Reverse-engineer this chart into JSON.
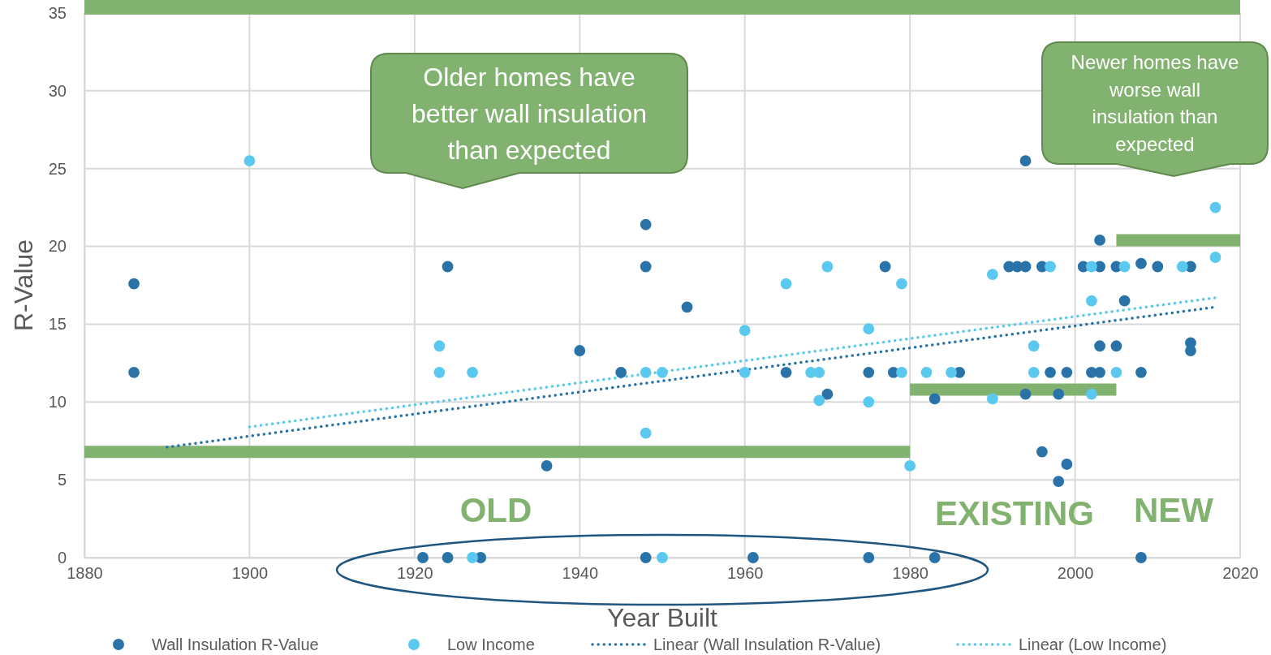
{
  "chart_data": {
    "type": "scatter",
    "xlabel": "Year Built",
    "ylabel": "R-Value",
    "xlim": [
      1880,
      2020
    ],
    "ylim": [
      0,
      35
    ],
    "xticks": [
      1880,
      1900,
      1920,
      1940,
      1960,
      1980,
      2000,
      2020
    ],
    "yticks": [
      0,
      5,
      10,
      15,
      20,
      25,
      30,
      35
    ],
    "grid": true,
    "legend": "bottom",
    "annotations": [
      "Older homes have better wall insulation than expected",
      "Newer homes have worse wall insulation than expected",
      "OLD",
      "EXISTING",
      "NEW"
    ],
    "series": [
      {
        "type": "line",
        "color": "#82b26f",
        "line_style": "solid",
        "x": [
          1880,
          1980
        ],
        "values": [
          6.8,
          6.8
        ]
      },
      {
        "type": "line",
        "color": "#82b26f",
        "line_style": "solid",
        "x": [
          1980,
          2005
        ],
        "values": [
          10.8,
          10.8
        ]
      },
      {
        "type": "line",
        "color": "#82b26f",
        "line_style": "solid",
        "x": [
          2005,
          2020
        ],
        "values": [
          20.4,
          20.4
        ]
      },
      {
        "type": "line",
        "name": "Linear (Wall Insulation R-Value)",
        "color": "#2a73a8",
        "line_style": "dotted",
        "x": [
          1890,
          2017
        ],
        "values": [
          7.1,
          16.1
        ]
      },
      {
        "type": "line",
        "name": "Linear (Low Income)",
        "color": "#5bc8ef",
        "line_style": "dotted",
        "x": [
          1900,
          2017
        ],
        "values": [
          8.4,
          16.7
        ]
      },
      {
        "name": "Wall Insulation R-Value",
        "color": "#2a73a8",
        "marker": "circle",
        "x": [
          1886,
          1886,
          1921,
          1924,
          1924,
          1928,
          1936,
          1940,
          1945,
          1948,
          1948,
          1948,
          1953,
          1961,
          1965,
          1970,
          1975,
          1975,
          1977,
          1978,
          1983,
          1983,
          1986,
          1992,
          1993,
          1994,
          1994,
          1994,
          1996,
          1996,
          1997,
          1998,
          1998,
          1999,
          1999,
          2001,
          2002,
          2003,
          2003,
          2003,
          2003,
          2005,
          2005,
          2006,
          2008,
          2008,
          2008,
          2010,
          2014,
          2014,
          2014
        ],
        "values": [
          17.6,
          11.9,
          0,
          18.7,
          0,
          0,
          5.9,
          13.3,
          11.9,
          21.4,
          18.7,
          0,
          16.1,
          0,
          11.9,
          10.5,
          11.9,
          0,
          18.7,
          11.9,
          10.2,
          0,
          11.9,
          18.7,
          18.7,
          18.7,
          25.5,
          10.5,
          18.7,
          6.8,
          11.9,
          10.5,
          4.9,
          11.9,
          6.0,
          18.7,
          11.9,
          20.4,
          18.7,
          13.6,
          11.9,
          18.7,
          13.6,
          16.5,
          18.9,
          11.9,
          0,
          18.7,
          18.7,
          13.8,
          13.3
        ]
      },
      {
        "name": "Low Income",
        "color": "#5bc8ef",
        "marker": "circle",
        "x": [
          1900,
          1923,
          1923,
          1927,
          1927,
          1948,
          1948,
          1950,
          1950,
          1960,
          1960,
          1965,
          1968,
          1969,
          1969,
          1970,
          1975,
          1975,
          1979,
          1979,
          1980,
          1982,
          1985,
          1990,
          1990,
          1995,
          1995,
          1997,
          2002,
          2002,
          2002,
          2005,
          2006,
          2013,
          2017,
          2017
        ],
        "values": [
          25.5,
          13.6,
          11.9,
          11.9,
          0,
          11.9,
          8.0,
          11.9,
          0,
          14.6,
          11.9,
          17.6,
          11.9,
          11.9,
          10.1,
          18.7,
          14.7,
          10.0,
          17.6,
          11.9,
          5.9,
          11.9,
          11.9,
          18.2,
          10.2,
          13.6,
          11.9,
          18.7,
          18.7,
          16.5,
          10.5,
          11.9,
          18.7,
          18.7,
          22.5,
          19.3
        ]
      }
    ]
  }
}
